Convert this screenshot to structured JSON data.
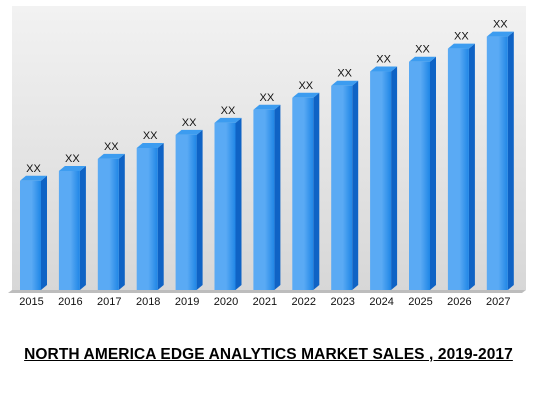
{
  "chart_data": {
    "type": "bar",
    "categories": [
      "2015",
      "2016",
      "2017",
      "2018",
      "2019",
      "2020",
      "2021",
      "2022",
      "2023",
      "2024",
      "2025",
      "2026",
      "2027"
    ],
    "values": [
      1.0,
      1.09,
      1.2,
      1.3,
      1.42,
      1.53,
      1.65,
      1.76,
      1.87,
      2.0,
      2.09,
      2.21,
      2.32
    ],
    "data_labels": [
      "XX",
      "XX",
      "XX",
      "XX",
      "XX",
      "XX",
      "XX",
      "XX",
      "XX",
      "XX",
      "XX",
      "XX",
      "XX"
    ],
    "title": "NORTH AMERICA EDGE ANALYTICS MARKET SALES , 2019-2017",
    "xlabel": "",
    "ylabel": "",
    "ylim": [
      0,
      2.6
    ],
    "grid": false,
    "legend": "none",
    "colors": {
      "bar_front": "#5aaaf4",
      "bar_front_dark": "#1f86e6",
      "bar_top": "#3c9cf0",
      "bar_side": "#0f63c5",
      "plot_bg_top": "#f2f2f2",
      "plot_bg_bottom": "#d7d7d7",
      "floor": "#bdbdbd"
    }
  }
}
